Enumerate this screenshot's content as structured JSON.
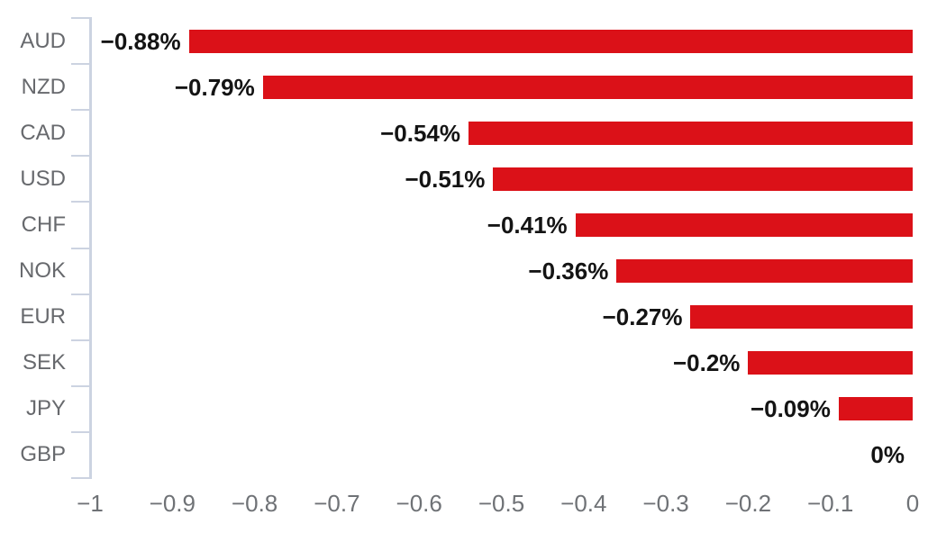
{
  "chart_data": {
    "type": "bar",
    "orientation": "horizontal",
    "title": "",
    "xlabel": "",
    "ylabel": "",
    "grid": false,
    "legend": false,
    "xlim": [
      -1,
      0
    ],
    "categories": [
      "AUD",
      "NZD",
      "CAD",
      "USD",
      "CHF",
      "NOK",
      "EUR",
      "SEK",
      "JPY",
      "GBP"
    ],
    "values": [
      -0.88,
      -0.79,
      -0.54,
      -0.51,
      -0.41,
      -0.36,
      -0.27,
      -0.2,
      -0.09,
      0
    ],
    "value_labels": [
      "−0.88%",
      "−0.79%",
      "−0.54%",
      "−0.51%",
      "−0.41%",
      "−0.36%",
      "−0.27%",
      "−0.2%",
      "−0.09%",
      "0%"
    ],
    "x_ticks": [
      -1,
      -0.9,
      -0.8,
      -0.7,
      -0.6,
      -0.5,
      -0.4,
      -0.3,
      -0.2,
      -0.1,
      0
    ],
    "x_tick_labels": [
      "−1",
      "−0.9",
      "−0.8",
      "−0.7",
      "−0.6",
      "−0.5",
      "−0.4",
      "−0.3",
      "−0.2",
      "−0.1",
      "0"
    ],
    "colors": {
      "bar": "#db1118",
      "axis": "#ccd3e1",
      "category_label": "#67696d",
      "x_tick_label": "#6f7276",
      "value_label": "#141414",
      "background": "#ffffff"
    }
  }
}
